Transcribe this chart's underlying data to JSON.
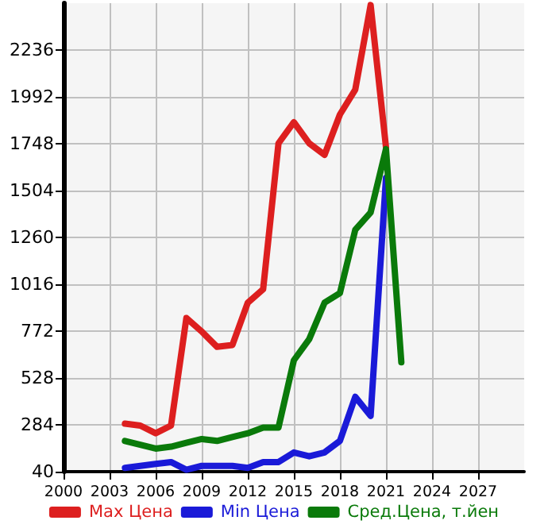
{
  "chart_data": {
    "type": "line",
    "x": [
      2004,
      2005,
      2006,
      2007,
      2008,
      2009,
      2010,
      2011,
      2012,
      2013,
      2014,
      2015,
      2016,
      2017,
      2018,
      2019,
      2020,
      2021,
      2022
    ],
    "series": [
      {
        "name": "Max Цена",
        "color": "#dd1f1f",
        "x": [
          2004,
          2005,
          2006,
          2007,
          2008,
          2009,
          2010,
          2011,
          2012,
          2013,
          2014,
          2015,
          2016,
          2017,
          2018,
          2019,
          2020,
          2021
        ],
        "values": [
          290,
          280,
          240,
          280,
          840,
          770,
          690,
          700,
          920,
          990,
          1750,
          1860,
          1750,
          1690,
          1900,
          2030,
          2470,
          1730
        ]
      },
      {
        "name": "Min Цена",
        "color": "#1a1ad8",
        "x": [
          2004,
          2005,
          2006,
          2007,
          2008,
          2009,
          2010,
          2011,
          2012,
          2013,
          2014,
          2015,
          2016,
          2017,
          2018,
          2019,
          2020,
          2021
        ],
        "values": [
          60,
          70,
          80,
          90,
          50,
          70,
          70,
          70,
          60,
          90,
          90,
          140,
          120,
          140,
          200,
          430,
          330,
          1570
        ]
      },
      {
        "name": "Сред.Цена, т.йен",
        "color": "#0a7a0a",
        "values": [
          200,
          180,
          160,
          170,
          190,
          210,
          200,
          220,
          240,
          270,
          270,
          620,
          730,
          920,
          970,
          1300,
          1390,
          1720,
          610
        ]
      }
    ],
    "xlim": [
      2000,
      2030
    ],
    "xticks": [
      2000,
      2003,
      2006,
      2009,
      2012,
      2015,
      2018,
      2021,
      2024,
      2027
    ],
    "ylim": [
      40,
      2480
    ],
    "yticks": [
      40,
      284,
      528,
      772,
      1016,
      1260,
      1504,
      1748,
      1992,
      2236
    ],
    "grid": true,
    "legend": "bottom",
    "marker": "none",
    "line_style": "solid"
  }
}
